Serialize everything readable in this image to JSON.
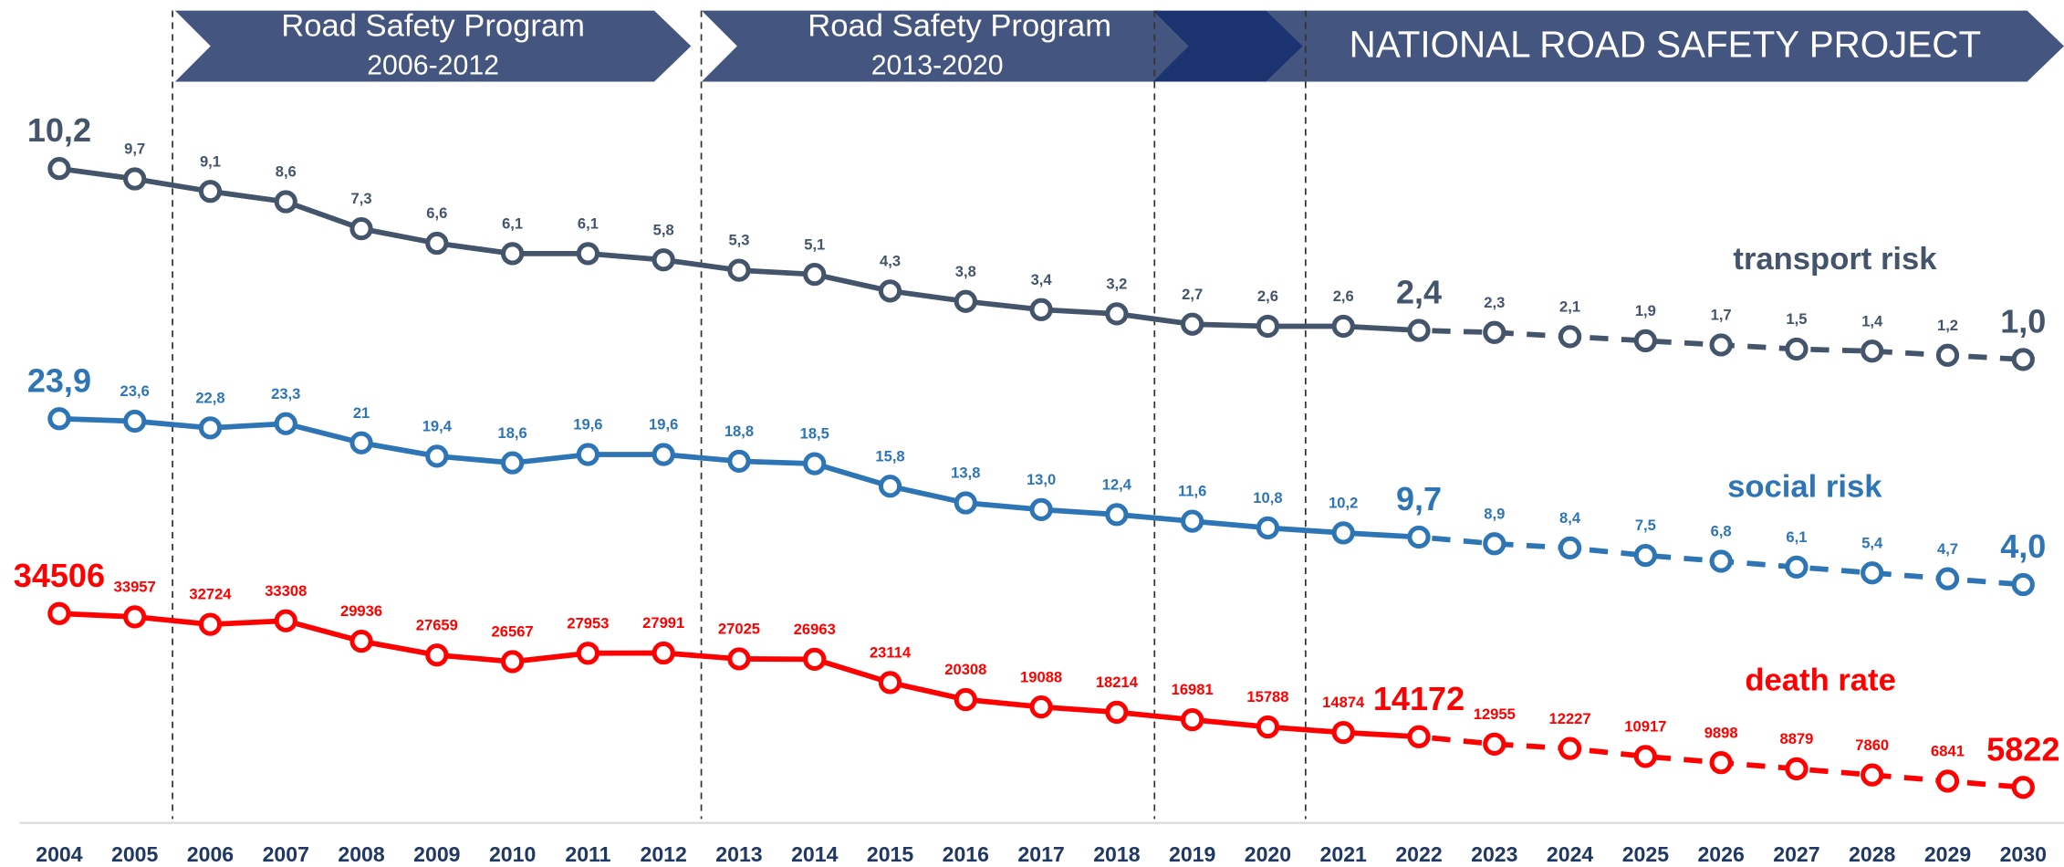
{
  "chart_data": {
    "type": "line",
    "categories": [
      "2004",
      "2005",
      "2006",
      "2007",
      "2008",
      "2009",
      "2010",
      "2011",
      "2012",
      "2013",
      "2014",
      "2015",
      "2016",
      "2017",
      "2018",
      "2019",
      "2020",
      "2021",
      "2022",
      "2023",
      "2024",
      "2025",
      "2026",
      "2027",
      "2028",
      "2029",
      "2030"
    ],
    "series": [
      {
        "name": "transport risk",
        "color": "#44546a",
        "values": [
          10.2,
          9.7,
          9.1,
          8.6,
          7.3,
          6.6,
          6.1,
          6.1,
          5.8,
          5.3,
          5.1,
          4.3,
          3.8,
          3.4,
          3.2,
          2.7,
          2.6,
          2.6,
          2.4,
          2.3,
          2.1,
          1.9,
          1.7,
          1.5,
          1.4,
          1.2,
          1.0
        ],
        "value_labels": [
          "10,2",
          "9,7",
          "9,1",
          "8,6",
          "7,3",
          "6,6",
          "6,1",
          "6,1",
          "5,8",
          "5,3",
          "5,1",
          "4,3",
          "3,8",
          "3,4",
          "3,2",
          "2,7",
          "2,6",
          "2,6",
          "2,4",
          "2,3",
          "2,1",
          "1,9",
          "1,7",
          "1,5",
          "1,4",
          "1,2",
          "1,0"
        ]
      },
      {
        "name": "social risk",
        "color": "#2e75b6",
        "values": [
          23.9,
          23.6,
          22.8,
          23.3,
          21,
          19.4,
          18.6,
          19.6,
          19.6,
          18.8,
          18.5,
          15.8,
          13.8,
          13.0,
          12.4,
          11.6,
          10.8,
          10.2,
          9.7,
          8.9,
          8.4,
          7.5,
          6.8,
          6.1,
          5.4,
          4.7,
          4.0
        ],
        "value_labels": [
          "23,9",
          "23,6",
          "22,8",
          "23,3",
          "21",
          "19,4",
          "18,6",
          "19,6",
          "19,6",
          "18,8",
          "18,5",
          "15,8",
          "13,8",
          "13,0",
          "12,4",
          "11,6",
          "10,8",
          "10,2",
          "9,7",
          "8,9",
          "8,4",
          "7,5",
          "6,8",
          "6,1",
          "5,4",
          "4,7",
          "4,0"
        ]
      },
      {
        "name": "death rate",
        "color": "#ff0000",
        "values": [
          34506,
          33957,
          32724,
          33308,
          29936,
          27659,
          26567,
          27953,
          27991,
          27025,
          26963,
          23114,
          20308,
          19088,
          18214,
          16981,
          15788,
          14874,
          14172,
          12955,
          12227,
          10917,
          9898,
          8879,
          7860,
          6841,
          5822
        ]
      }
    ],
    "projection_start": "2022",
    "highlight": [
      "2004",
      "2022",
      "2030"
    ]
  },
  "banners": [
    {
      "title": "Road Safety Program",
      "period": "2006-2012"
    },
    {
      "title": "Road Safety Program",
      "period": "2013-2020"
    },
    {
      "title": "NATIONAL ROAD SAFETY PROJECT"
    }
  ]
}
